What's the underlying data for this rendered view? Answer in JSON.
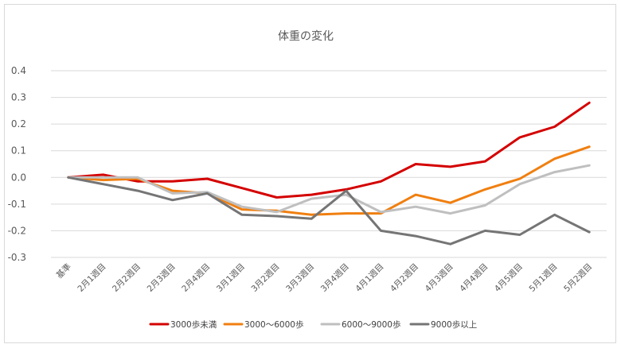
{
  "chart_data": {
    "type": "line",
    "title": "体重の変化",
    "xlabel": "",
    "ylabel": "",
    "ylim": [
      -0.3,
      0.4
    ],
    "yticks": [
      "0.4",
      "0.3",
      "0.2",
      "0.1",
      "0.0",
      "-0.1",
      "-0.2",
      "-0.3"
    ],
    "ytick_values": [
      0.4,
      0.3,
      0.2,
      0.1,
      0.0,
      -0.1,
      -0.2,
      -0.3
    ],
    "grid": true,
    "legend_position": "bottom",
    "categories": [
      "基準",
      "2月1週目",
      "2月2週目",
      "2月3週目",
      "2月4週目",
      "3月1週目",
      "3月2週目",
      "3月3週目",
      "3月4週目",
      "4月1週目",
      "4月2週目",
      "4月3週目",
      "4月4週目",
      "4月5週目",
      "5月1週目",
      "5月2週目"
    ],
    "series": [
      {
        "name": "3000歩未満",
        "color": "#d40000",
        "values": [
          0.0,
          0.01,
          -0.015,
          -0.015,
          -0.005,
          -0.04,
          -0.075,
          -0.065,
          -0.045,
          -0.015,
          0.05,
          0.04,
          0.06,
          0.15,
          0.19,
          0.28
        ]
      },
      {
        "name": "3000〜6000歩",
        "color": "#f07f10",
        "values": [
          0.0,
          -0.01,
          -0.005,
          -0.05,
          -0.06,
          -0.12,
          -0.125,
          -0.14,
          -0.135,
          -0.135,
          -0.065,
          -0.095,
          -0.045,
          -0.005,
          0.07,
          0.115
        ]
      },
      {
        "name": "6000〜9000歩",
        "color": "#bfbfbf",
        "values": [
          0.0,
          0.0,
          0.0,
          -0.06,
          -0.055,
          -0.11,
          -0.13,
          -0.08,
          -0.065,
          -0.13,
          -0.11,
          -0.135,
          -0.105,
          -0.025,
          0.02,
          0.045
        ]
      },
      {
        "name": "9000歩以上",
        "color": "#757575",
        "values": [
          0.0,
          -0.025,
          -0.05,
          -0.085,
          -0.06,
          -0.14,
          -0.145,
          -0.155,
          -0.05,
          -0.2,
          -0.22,
          -0.25,
          -0.2,
          -0.215,
          -0.14,
          -0.205
        ]
      }
    ]
  }
}
